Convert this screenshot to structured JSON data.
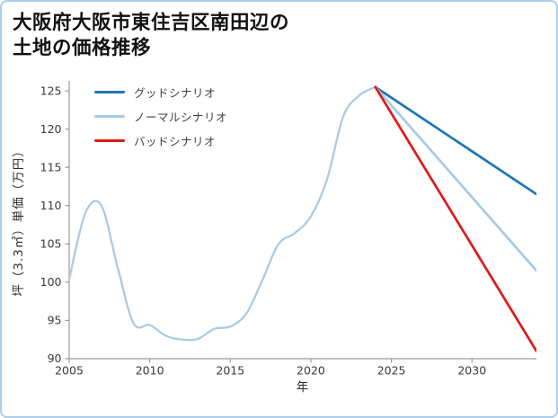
{
  "title": {
    "line1": "大阪府大阪市東住吉区南田辺の",
    "line2": "土地の価格推移"
  },
  "chart_data": {
    "type": "line",
    "title": "大阪府大阪市東住吉区南田辺の土地の価格推移",
    "xlabel": "年",
    "ylabel": "坪（3.3㎡）単価（万円）",
    "xlim": [
      2005,
      2034
    ],
    "ylim": [
      90,
      126.3
    ],
    "xticks": [
      2005,
      2010,
      2015,
      2020,
      2025,
      2030
    ],
    "yticks": [
      90,
      95,
      100,
      105,
      110,
      115,
      120,
      125
    ],
    "grid": false,
    "legend_position": "upper-left",
    "legend": [
      {
        "label": "グッドシナリオ",
        "color": "#1f77b4"
      },
      {
        "label": "ノーマルシナリオ",
        "color": "#a7cbe6"
      },
      {
        "label": "バッドシナリオ",
        "color": "#e01a1a"
      }
    ],
    "series": [
      {
        "name": "history",
        "color": "#a7cbe6",
        "smooth": true,
        "x": [
          2005,
          2006,
          2007,
          2008,
          2009,
          2010,
          2011,
          2012,
          2013,
          2014,
          2015,
          2016,
          2017,
          2018,
          2019,
          2020,
          2021,
          2022,
          2023,
          2024
        ],
        "y": [
          100.4,
          109.0,
          110.0,
          102.0,
          94.6,
          94.4,
          93.0,
          92.5,
          92.6,
          93.9,
          94.2,
          95.9,
          100.3,
          105.0,
          106.4,
          108.6,
          113.4,
          121.6,
          124.4,
          125.5
        ]
      },
      {
        "name": "good-scenario",
        "color": "#1f77b4",
        "smooth": false,
        "x": [
          2024,
          2034
        ],
        "y": [
          125.5,
          111.5
        ]
      },
      {
        "name": "normal-scenario",
        "color": "#a7cbe6",
        "smooth": false,
        "x": [
          2024,
          2034
        ],
        "y": [
          125.5,
          101.5
        ]
      },
      {
        "name": "bad-scenario",
        "color": "#e01a1a",
        "smooth": false,
        "x": [
          2024,
          2034
        ],
        "y": [
          125.5,
          91.0
        ]
      }
    ]
  }
}
